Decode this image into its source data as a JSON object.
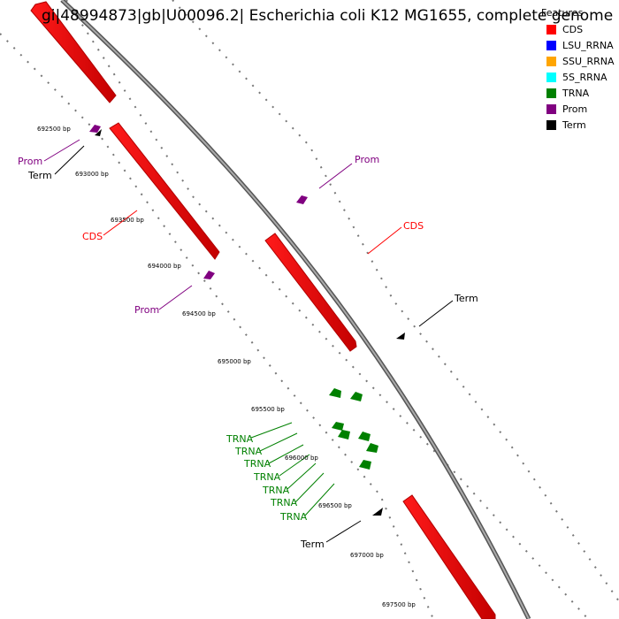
{
  "title": "gi|48994873|gb|U00096.2| Escherichia coli K12 MG1655, complete genome",
  "legend": {
    "title": "Features",
    "items": [
      {
        "label": "CDS",
        "color": "#ff0000"
      },
      {
        "label": "LSU_RRNA",
        "color": "#0000ff"
      },
      {
        "label": "SSU_RRNA",
        "color": "#ffa500"
      },
      {
        "label": "5S_RRNA",
        "color": "#00ffff"
      },
      {
        "label": "TRNA",
        "color": "#008000"
      },
      {
        "label": "Prom",
        "color": "#800080"
      },
      {
        "label": "Term",
        "color": "#000000"
      }
    ]
  },
  "scale_ticks": [
    "692500 bp",
    "693000 bp",
    "693500 bp",
    "694000 bp",
    "694500 bp",
    "695000 bp",
    "695500 bp",
    "696000 bp",
    "696500 bp",
    "697000 bp",
    "697500 bp"
  ],
  "feature_labels": [
    {
      "text": "Prom",
      "type": "Prom",
      "color": "#800080"
    },
    {
      "text": "Term",
      "type": "Term",
      "color": "#000000"
    },
    {
      "text": "CDS",
      "type": "CDS",
      "color": "#ff0000"
    },
    {
      "text": "Prom",
      "type": "Prom",
      "color": "#800080"
    },
    {
      "text": "Prom",
      "type": "Prom",
      "color": "#800080"
    },
    {
      "text": "CDS",
      "type": "CDS",
      "color": "#ff0000"
    },
    {
      "text": "Term",
      "type": "Term",
      "color": "#000000"
    },
    {
      "text": "TRNA",
      "type": "TRNA",
      "color": "#008000"
    },
    {
      "text": "TRNA",
      "type": "TRNA",
      "color": "#008000"
    },
    {
      "text": "TRNA",
      "type": "TRNA",
      "color": "#008000"
    },
    {
      "text": "TRNA",
      "type": "TRNA",
      "color": "#008000"
    },
    {
      "text": "TRNA",
      "type": "TRNA",
      "color": "#008000"
    },
    {
      "text": "TRNA",
      "type": "TRNA",
      "color": "#008000"
    },
    {
      "text": "TRNA",
      "type": "TRNA",
      "color": "#008000"
    },
    {
      "text": "Term",
      "type": "Term",
      "color": "#000000"
    }
  ]
}
